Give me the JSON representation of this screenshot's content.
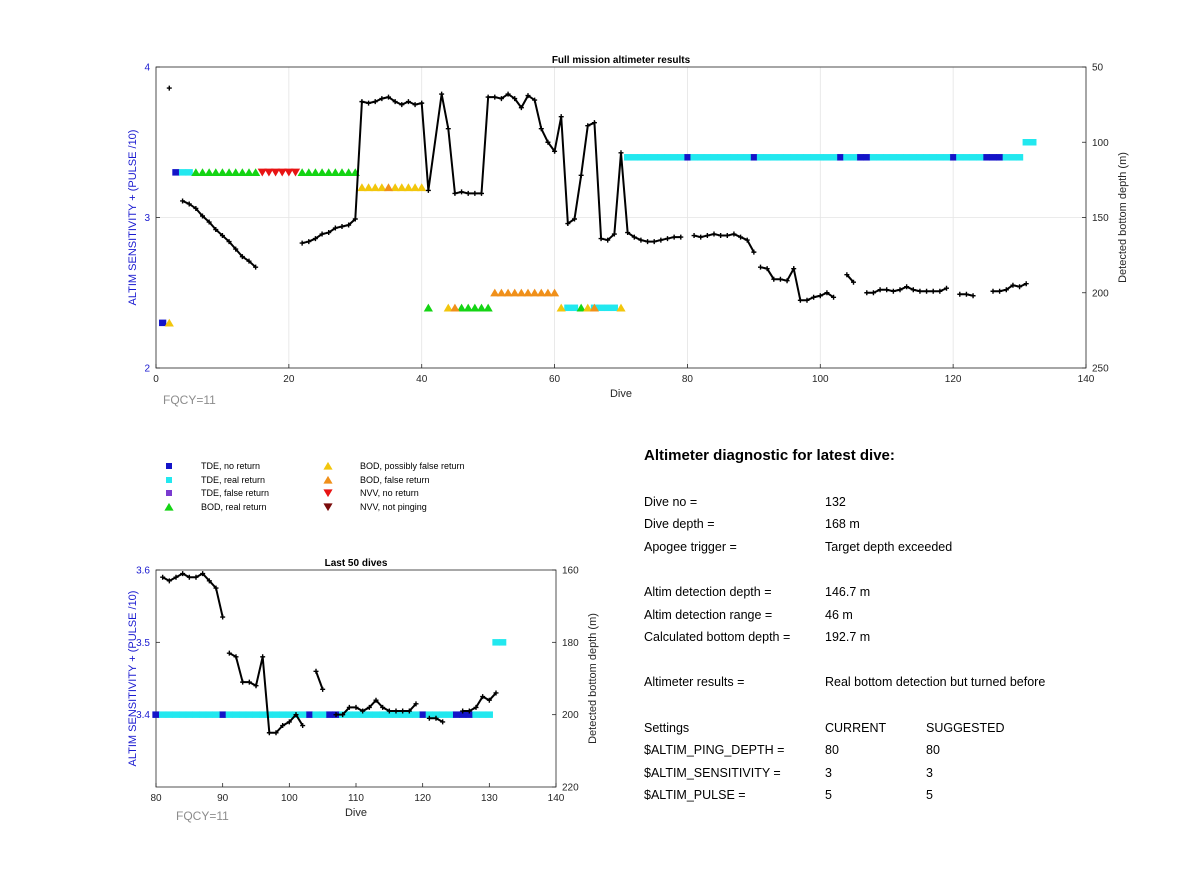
{
  "colors": {
    "tde_no_return": "#1414c8",
    "tde_real_return": "#22e8ef",
    "tde_false_return": "#7a3bd0",
    "bod_real_return": "#14d414",
    "bod_possibly_false": "#f2c60c",
    "bod_false_return": "#f0901a",
    "nvv_no_return": "#e81414",
    "nvv_not_pinging": "#7a0c0c",
    "depth_line": "#000000",
    "left_axis_text": "#1a1ad0"
  },
  "legend": [
    {
      "label": "TDE, no return",
      "marker": "square",
      "color": "#1414c8"
    },
    {
      "label": "TDE, real return",
      "marker": "square",
      "color": "#22e8ef"
    },
    {
      "label": "TDE, false return",
      "marker": "square",
      "color": "#7a3bd0"
    },
    {
      "label": "BOD, real return",
      "marker": "triangle-up",
      "color": "#14d414"
    },
    {
      "label": "BOD, possibly false return",
      "marker": "triangle-up",
      "color": "#f2c60c"
    },
    {
      "label": "BOD, false return",
      "marker": "triangle-up",
      "color": "#f0901a"
    },
    {
      "label": "NVV, no return",
      "marker": "triangle-down",
      "color": "#e81414"
    },
    {
      "label": "NVV, not pinging",
      "marker": "triangle-down",
      "color": "#7a0c0c"
    }
  ],
  "chart_data": [
    {
      "type": "line",
      "title": "Full mission altimeter results",
      "xlabel": "Dive",
      "ylabel": "ALTIM SENSITIVITY + (PULSE /10)",
      "y2label": "Detected bottom depth (m)",
      "xlim": [
        0,
        140
      ],
      "ylim": [
        2,
        4
      ],
      "y2lim": [
        50,
        250
      ],
      "y2_reversed": true,
      "xticks": [
        0,
        20,
        40,
        60,
        80,
        100,
        120,
        140
      ],
      "yticks": [
        2,
        3,
        4
      ],
      "y2ticks": [
        50,
        100,
        150,
        200,
        250
      ],
      "grid": true,
      "annotation": "FQCY=11",
      "depth_series": [
        [
          [
            2,
            64
          ]
        ],
        [
          [
            4,
            139
          ],
          [
            5,
            141
          ],
          [
            6,
            144
          ],
          [
            7,
            149
          ],
          [
            8,
            153
          ],
          [
            9,
            158
          ],
          [
            10,
            162
          ],
          [
            11,
            166
          ],
          [
            12,
            171
          ],
          [
            13,
            176
          ],
          [
            14,
            179
          ],
          [
            15,
            183
          ]
        ],
        [
          [
            22,
            167
          ],
          [
            23,
            166
          ],
          [
            24,
            164
          ],
          [
            25,
            161
          ],
          [
            26,
            160
          ],
          [
            27,
            157
          ],
          [
            28,
            156
          ],
          [
            29,
            155
          ],
          [
            30,
            151
          ],
          [
            31,
            73
          ],
          [
            32,
            74
          ],
          [
            33,
            73
          ],
          [
            34,
            71
          ],
          [
            35,
            70
          ],
          [
            36,
            73
          ],
          [
            37,
            75
          ],
          [
            38,
            73
          ],
          [
            39,
            75
          ],
          [
            40,
            74
          ],
          [
            41,
            132
          ],
          [
            43,
            68
          ],
          [
            44,
            91
          ],
          [
            45,
            134
          ],
          [
            46,
            133
          ],
          [
            47,
            134
          ],
          [
            48,
            134
          ],
          [
            49,
            134
          ],
          [
            50,
            70
          ],
          [
            51,
            70
          ],
          [
            52,
            71
          ],
          [
            53,
            68
          ],
          [
            54,
            71
          ],
          [
            55,
            77
          ],
          [
            56,
            69
          ],
          [
            57,
            72
          ],
          [
            58,
            91
          ],
          [
            59,
            100
          ],
          [
            60,
            106
          ],
          [
            61,
            83
          ],
          [
            62,
            154
          ],
          [
            63,
            151
          ],
          [
            64,
            122
          ],
          [
            65,
            89
          ],
          [
            66,
            87
          ],
          [
            67,
            164
          ],
          [
            68,
            165
          ],
          [
            69,
            161
          ],
          [
            70,
            107
          ],
          [
            71,
            160
          ],
          [
            72,
            163
          ],
          [
            73,
            165
          ],
          [
            74,
            166
          ],
          [
            75,
            166
          ],
          [
            76,
            165
          ],
          [
            77,
            164
          ],
          [
            78,
            163
          ],
          [
            79,
            163
          ]
        ],
        [
          [
            81,
            162
          ],
          [
            82,
            163
          ],
          [
            83,
            162
          ],
          [
            84,
            161
          ],
          [
            85,
            162
          ],
          [
            86,
            162
          ],
          [
            87,
            161
          ],
          [
            88,
            163
          ],
          [
            89,
            165
          ],
          [
            90,
            173
          ]
        ],
        [
          [
            91,
            183
          ],
          [
            92,
            184
          ],
          [
            93,
            191
          ],
          [
            94,
            191
          ],
          [
            95,
            192
          ],
          [
            96,
            184
          ],
          [
            97,
            205
          ],
          [
            98,
            205
          ],
          [
            99,
            203
          ],
          [
            100,
            202
          ],
          [
            101,
            200
          ],
          [
            102,
            203
          ]
        ],
        [
          [
            104,
            188
          ],
          [
            105,
            193
          ]
        ],
        [
          [
            107,
            200
          ],
          [
            108,
            200
          ],
          [
            109,
            198
          ],
          [
            110,
            198
          ],
          [
            111,
            199
          ],
          [
            112,
            198
          ],
          [
            113,
            196
          ],
          [
            114,
            198
          ],
          [
            115,
            199
          ],
          [
            116,
            199
          ],
          [
            117,
            199
          ],
          [
            118,
            199
          ],
          [
            119,
            197
          ]
        ],
        [
          [
            121,
            201
          ],
          [
            122,
            201
          ],
          [
            123,
            202
          ]
        ],
        [
          [
            126,
            199
          ],
          [
            127,
            199
          ],
          [
            128,
            198
          ],
          [
            129,
            195
          ],
          [
            130,
            196
          ],
          [
            131,
            194
          ]
        ]
      ],
      "tde_markers": [
        {
          "status": "no_return",
          "dives": [
            1,
            3,
            80,
            90,
            103,
            106,
            107,
            120,
            125,
            126,
            127
          ]
        },
        {
          "status": "real_return",
          "dives": [
            4,
            5,
            71,
            72,
            73,
            74,
            75,
            76,
            77,
            78,
            79,
            81,
            82,
            83,
            84,
            85,
            86,
            87,
            88,
            89,
            91,
            92,
            93,
            94,
            95,
            96,
            97,
            98,
            99,
            100,
            101,
            102,
            104,
            105,
            108,
            109,
            110,
            111,
            112,
            113,
            114,
            115,
            116,
            117,
            118,
            119,
            121,
            122,
            123,
            124,
            128,
            129,
            130,
            131,
            132
          ]
        }
      ],
      "bod_markers": [
        {
          "status": "real_return",
          "dives": [
            6,
            7,
            8,
            9,
            10,
            11,
            12,
            13,
            14,
            15,
            22,
            23,
            24,
            25,
            26,
            27,
            28,
            29,
            30,
            41,
            46,
            47,
            48,
            49,
            50,
            64
          ]
        },
        {
          "status": "possibly_false",
          "dives": [
            2,
            31,
            32,
            33,
            34,
            36,
            37,
            38,
            39,
            40,
            44,
            61,
            65,
            70
          ]
        },
        {
          "status": "false_return",
          "dives": [
            35,
            45,
            51,
            52,
            53,
            54,
            55,
            56,
            57,
            58,
            59,
            60,
            66
          ]
        }
      ],
      "nvv_markers": [
        {
          "status": "no_return",
          "dives": [
            16,
            17,
            18,
            19,
            20,
            21
          ]
        }
      ]
    },
    {
      "type": "line",
      "title": "Last 50 dives",
      "xlabel": "Dive",
      "ylabel": "ALTIM SENSITIVITY + (PULSE /10)",
      "y2label": "Detected bottom depth (m)",
      "xlim": [
        80,
        140
      ],
      "ylim": [
        3.3,
        3.6
      ],
      "y2lim": [
        160,
        220
      ],
      "y2_reversed": true,
      "xticks": [
        80,
        90,
        100,
        110,
        120,
        130,
        140
      ],
      "yticks": [
        3.4,
        3.5,
        3.6
      ],
      "y2ticks": [
        160,
        180,
        200,
        220
      ],
      "annotation": "FQCY=11"
    }
  ],
  "diagnostic": {
    "title": "Altimeter diagnostic for latest dive:",
    "rows": [
      {
        "label": "Dive no =",
        "value": "132"
      },
      {
        "label": "Dive depth =",
        "value": "168 m"
      },
      {
        "label": "Apogee trigger =",
        "value": "Target depth exceeded"
      },
      {
        "label": "Altim detection depth =",
        "value": "146.7 m"
      },
      {
        "label": "Altim detection range =",
        "value": "46 m"
      },
      {
        "label": "Calculated bottom depth =",
        "value": "192.7 m"
      },
      {
        "label": "Altimeter results =",
        "value": "Real bottom detection but turned before"
      }
    ],
    "settings": {
      "header": [
        "Settings",
        "CURRENT",
        "SUGGESTED"
      ],
      "rows": [
        {
          "name": "$ALTIM_PING_DEPTH =",
          "current": "80",
          "suggested": "80"
        },
        {
          "name": "$ALTIM_SENSITIVITY =",
          "current": "3",
          "suggested": "3"
        },
        {
          "name": "$ALTIM_PULSE =",
          "current": "5",
          "suggested": "5"
        }
      ]
    }
  }
}
